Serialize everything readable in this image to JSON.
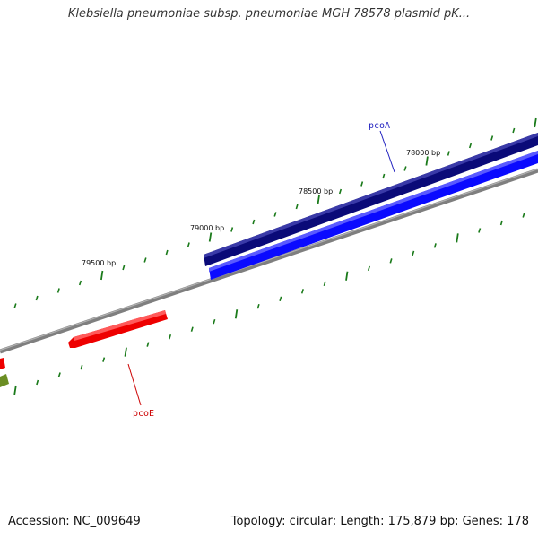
{
  "title": "Klebsiella pneumoniae subsp. pneumoniae MGH 78578 plasmid pK...",
  "footer": {
    "accession": "Accession: NC_009649",
    "summary": "Topology: circular; Length: 175,879 bp; Genes: 178"
  },
  "scale_labels": [
    "79500 bp",
    "79000 bp",
    "78500 bp",
    "78000 bp"
  ],
  "genes": [
    {
      "name": "pcoA",
      "color": "#1f1fbf"
    },
    {
      "name": "pcoE",
      "color": "#cc0000"
    }
  ],
  "colors": {
    "backbone": "#808080",
    "tick": "#1a7a1a",
    "gene_dark_blue": "#0a0a78",
    "gene_blue": "#0a0aff",
    "gene_red": "#ee0000",
    "gene_olive": "#6b8e23"
  }
}
